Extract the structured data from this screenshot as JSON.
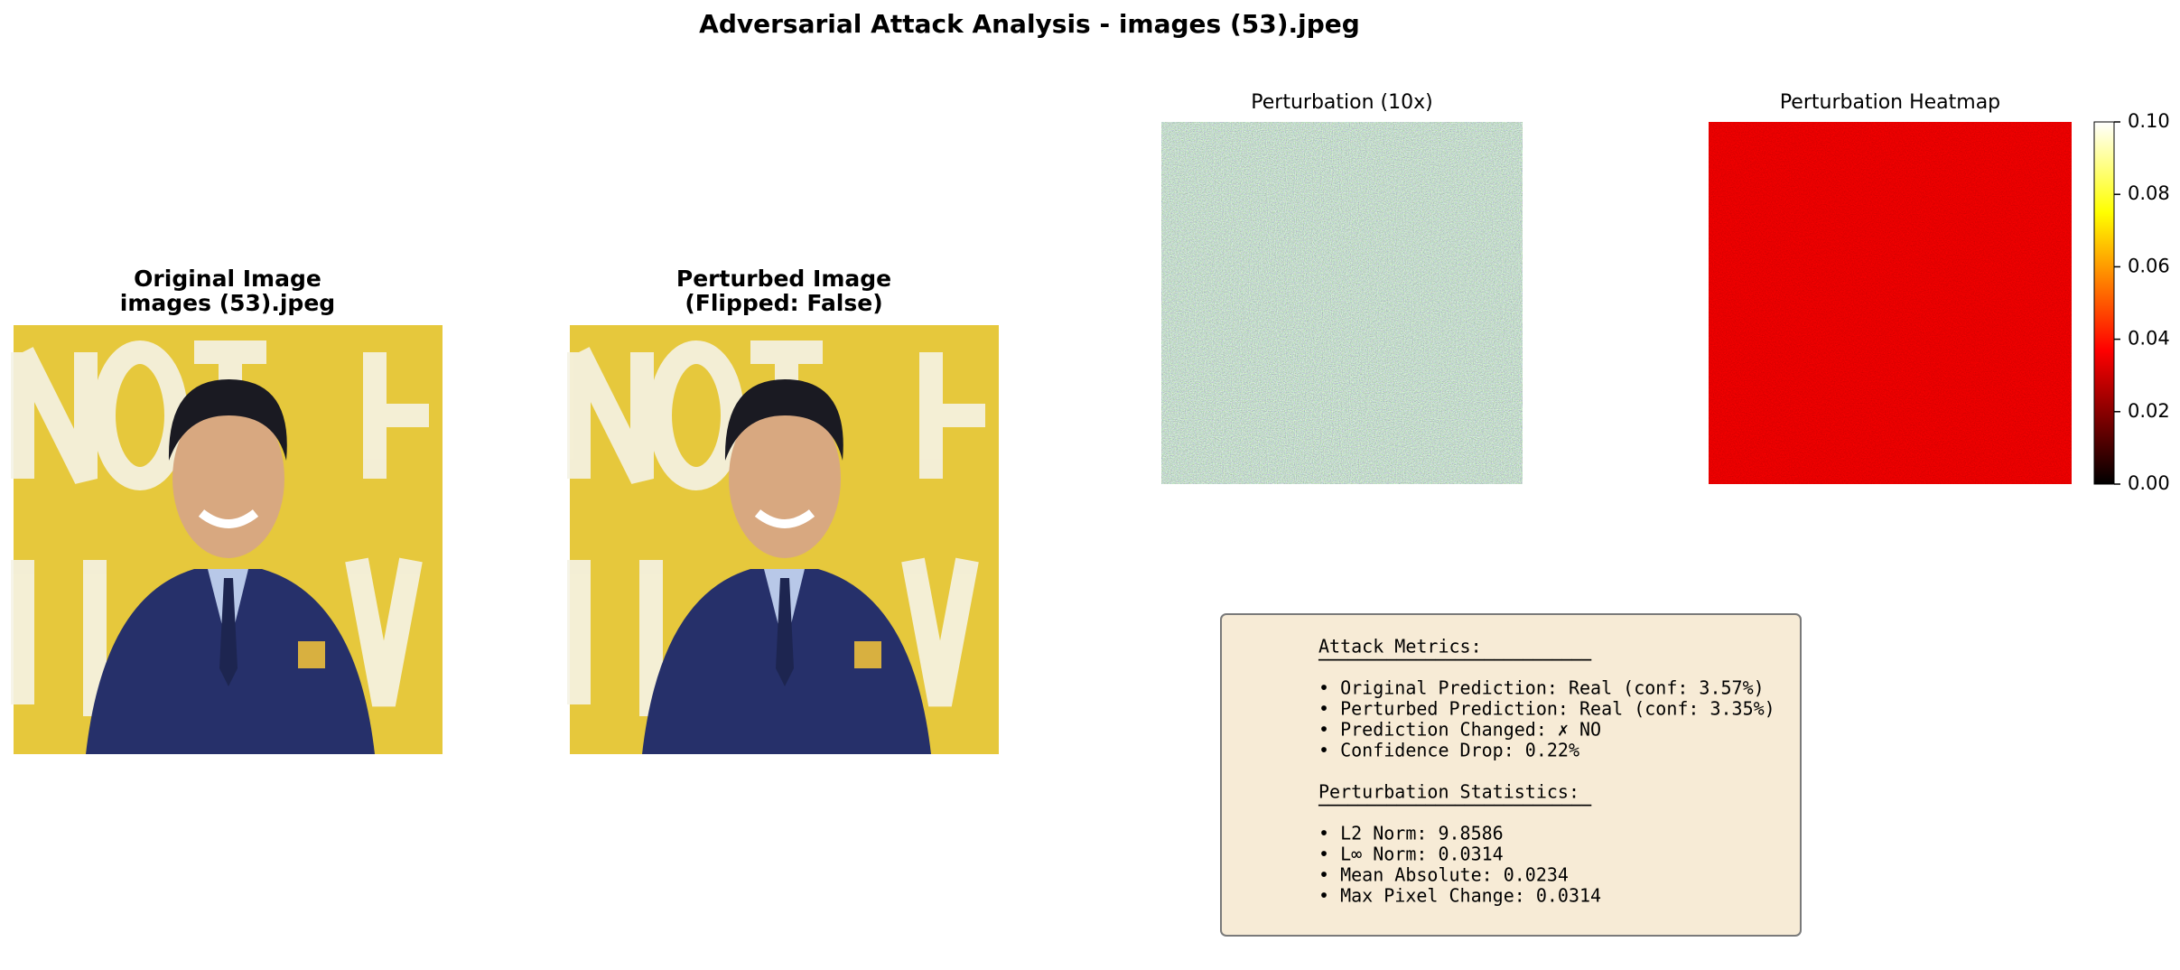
{
  "title": "Adversarial Attack Analysis - images (53).jpeg",
  "panels": [
    {
      "title": [
        "Original Image",
        "images (53).jpeg"
      ]
    },
    {
      "title": [
        "Perturbed Image",
        "(Flipped: False)"
      ]
    },
    {
      "title": [
        "Perturbation (10x)"
      ]
    },
    {
      "title": [
        "Perturbation Heatmap"
      ]
    }
  ],
  "colorbar": {
    "lim": [
      0,
      0.1
    ],
    "ticks": [
      {
        "value": 0,
        "label": "0.00"
      },
      {
        "value": 0.02,
        "label": "0.02"
      },
      {
        "value": 0.04,
        "label": "0.04"
      },
      {
        "value": 0.06,
        "label": "0.06"
      },
      {
        "value": 0.08,
        "label": "0.08"
      },
      {
        "value": 0.1,
        "label": "0.10"
      }
    ]
  },
  "metrics": {
    "sections": [
      {
        "heading": "Attack Metrics:",
        "rule": "────────────────────────────",
        "items": [
          "• Original Prediction: Real (conf: 3.57%)",
          "• Perturbed Prediction: Real (conf: 3.35%)",
          "• Prediction Changed: ✗ NO",
          "• Confidence Drop: 0.22%"
        ]
      },
      {
        "heading": "Perturbation Statistics:",
        "rule": "────────────────────────────",
        "items": [
          "• L2 Norm: 9.8586",
          "• L∞ Norm: 0.0314",
          "• Mean Absolute: 0.0234",
          "• Max Pixel Change: 0.0314"
        ]
      }
    ]
  }
}
